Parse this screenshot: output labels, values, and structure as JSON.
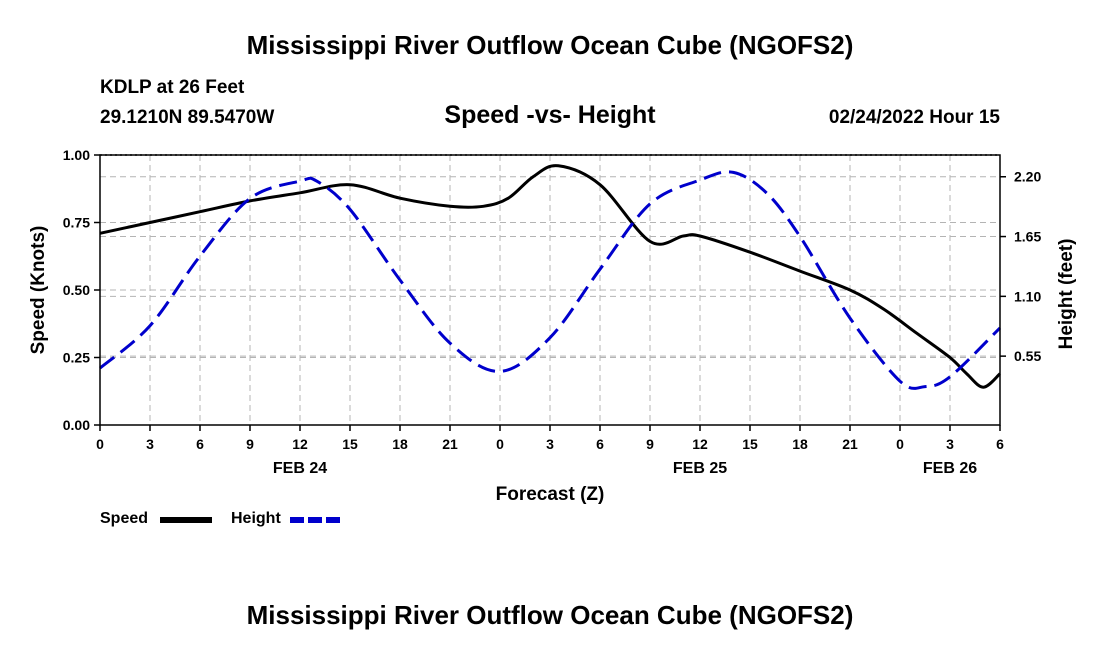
{
  "page": {
    "title_top": "Mississippi River Outflow Ocean Cube (NGOFS2)",
    "title_bottom": "Mississippi River Outflow Ocean Cube (NGOFS2)",
    "station": "KDLP at 26 Feet",
    "coords": "29.1210N  89.5470W",
    "subtitle": "Speed -vs- Height",
    "run_date": "02/24/2022 Hour 15"
  },
  "legend": {
    "speed_label": "Speed",
    "height_label": "Height"
  },
  "colors": {
    "speed": "#000000",
    "height": "#0000cc",
    "grid": "#b4b4b4"
  },
  "chart_data": {
    "type": "line",
    "title": "Speed -vs- Height",
    "xlabel": "Forecast (Z)",
    "ylabel": "Speed (Knots)",
    "y2label": "Height (feet)",
    "x_range_hours": [
      0,
      54
    ],
    "x_ticks": [
      0,
      3,
      6,
      9,
      12,
      15,
      18,
      21,
      24,
      27,
      30,
      33,
      36,
      39,
      42,
      45,
      48,
      51,
      54
    ],
    "x_tick_labels": [
      "0",
      "3",
      "6",
      "9",
      "12",
      "15",
      "18",
      "21",
      "0",
      "3",
      "6",
      "9",
      "12",
      "15",
      "18",
      "21",
      "0",
      "3",
      "6"
    ],
    "date_labels": [
      {
        "hour": 12,
        "label": "FEB 24"
      },
      {
        "hour": 36,
        "label": "FEB 25"
      },
      {
        "hour": 51,
        "label": "FEB 26"
      }
    ],
    "ylim": [
      0,
      1
    ],
    "y_ticks": [
      0,
      0.25,
      0.5,
      0.75,
      1.0
    ],
    "y_tick_labels": [
      "0.00",
      "0.25",
      "0.50",
      "0.75",
      "1.00"
    ],
    "y2lim": [
      -0.0833,
      2.4
    ],
    "y2_ticks": [
      0.55,
      1.1,
      1.65,
      2.2
    ],
    "y2_tick_labels": [
      "0.55",
      "1.10",
      "1.65",
      "2.20"
    ],
    "grid": true,
    "series": [
      {
        "name": "Speed",
        "axis": "left",
        "style": "solid",
        "x": [
          0,
          3,
          6,
          9,
          12,
          15,
          18,
          21,
          23,
          24.5,
          26,
          27.5,
          30,
          33,
          35,
          36,
          39,
          42,
          45,
          47,
          49,
          51,
          52,
          53,
          54
        ],
        "values": [
          0.71,
          0.75,
          0.79,
          0.83,
          0.86,
          0.89,
          0.84,
          0.81,
          0.81,
          0.84,
          0.92,
          0.96,
          0.89,
          0.68,
          0.7,
          0.7,
          0.64,
          0.57,
          0.5,
          0.43,
          0.34,
          0.25,
          0.19,
          0.14,
          0.19
        ]
      },
      {
        "name": "Height",
        "axis": "right",
        "style": "dashed",
        "x": [
          0,
          3,
          6,
          9,
          12,
          13,
          15,
          18,
          21,
          24,
          27,
          30,
          33,
          36,
          38,
          40,
          42,
          45,
          48,
          49.5,
          51,
          54
        ],
        "values": [
          0.44,
          0.83,
          1.47,
          2.0,
          2.16,
          2.16,
          1.9,
          1.25,
          0.67,
          0.41,
          0.72,
          1.35,
          1.95,
          2.17,
          2.24,
          2.05,
          1.65,
          0.9,
          0.32,
          0.27,
          0.36,
          0.81
        ]
      }
    ]
  }
}
